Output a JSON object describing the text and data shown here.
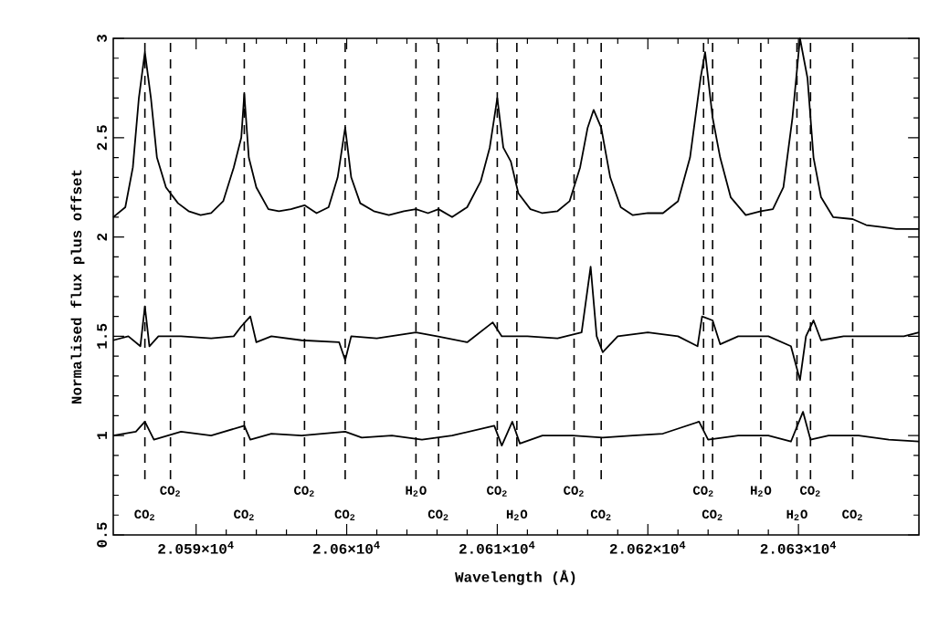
{
  "chart_data": {
    "type": "line",
    "xlabel": "Wavelength (Å)",
    "ylabel": "Normalised flux plus offset",
    "xlim": [
      20584.5,
      20638
    ],
    "ylim": [
      0.5,
      3
    ],
    "xticks": [
      {
        "value": 20590,
        "label": "2.059×10$^{4}$"
      },
      {
        "value": 20600,
        "label": "2.06×10$^{4}$"
      },
      {
        "value": 20610,
        "label": "2.061×10$^{4}$"
      },
      {
        "value": 20620,
        "label": "2.062×10$^{4}$"
      },
      {
        "value": 20630,
        "label": "2.063×10$^{4}$"
      }
    ],
    "yticks": [
      0.5,
      1,
      1.5,
      2,
      2.5,
      3
    ],
    "line_style": "solid",
    "marker": "none",
    "series": [
      {
        "color": "#000000",
        "x": [
          20584.5,
          20585.3,
          20585.8,
          20586.2,
          20586.6,
          20587.0,
          20587.4,
          20588.0,
          20588.8,
          20589.5,
          20590.3,
          20591.0,
          20591.8,
          20592.5,
          20593.0,
          20593.2,
          20593.5,
          20594.0,
          20594.8,
          20595.5,
          20596.3,
          20597.2,
          20598.0,
          20598.8,
          20599.4,
          20599.9,
          20600.3,
          20600.9,
          20601.8,
          20602.8,
          20603.8,
          20604.6,
          20605.4,
          20606.1,
          20607.0,
          20608.0,
          20608.9,
          20609.5,
          20610.0,
          20610.4,
          20610.9,
          20611.4,
          20612.2,
          20613.0,
          20614.0,
          20614.8,
          20615.5,
          20616.0,
          20616.4,
          20616.9,
          20617.5,
          20618.2,
          20619.0,
          20620.0,
          20621.0,
          20622.0,
          20622.8,
          20623.5,
          20623.8,
          20624.3,
          20624.8,
          20625.5,
          20626.5,
          20627.5,
          20628.3,
          20629.0,
          20629.6,
          20630.1,
          20630.6,
          20631.0,
          20631.5,
          20632.3,
          20633.6,
          20634.5,
          20635.5,
          20636.5,
          20638.0
        ],
        "values": [
          2.1,
          2.15,
          2.35,
          2.7,
          2.93,
          2.7,
          2.4,
          2.25,
          2.17,
          2.13,
          2.11,
          2.12,
          2.18,
          2.35,
          2.5,
          2.72,
          2.4,
          2.25,
          2.14,
          2.13,
          2.14,
          2.16,
          2.12,
          2.15,
          2.3,
          2.55,
          2.3,
          2.17,
          2.13,
          2.11,
          2.13,
          2.14,
          2.12,
          2.14,
          2.1,
          2.15,
          2.28,
          2.45,
          2.7,
          2.45,
          2.38,
          2.22,
          2.14,
          2.12,
          2.13,
          2.18,
          2.35,
          2.55,
          2.64,
          2.55,
          2.3,
          2.15,
          2.11,
          2.12,
          2.12,
          2.18,
          2.4,
          2.8,
          2.93,
          2.6,
          2.4,
          2.2,
          2.11,
          2.13,
          2.14,
          2.25,
          2.6,
          3.0,
          2.8,
          2.4,
          2.2,
          2.1,
          2.09,
          2.06,
          2.05,
          2.04,
          2.04
        ]
      },
      {
        "color": "#000000",
        "x": [
          20584.5,
          20585.5,
          20586.3,
          20586.6,
          20586.9,
          20587.5,
          20589,
          20591,
          20592.5,
          20593.0,
          20593.6,
          20594.0,
          20595,
          20597,
          20599.5,
          20599.9,
          20600.3,
          20602,
          20604.6,
          20606,
          20608,
          20609.7,
          20610.3,
          20612,
          20614,
          20615.6,
          20616.2,
          20616.6,
          20617.0,
          20618,
          20620,
          20622,
          20623.3,
          20623.6,
          20624.3,
          20624.8,
          20626,
          20628,
          20629.5,
          20630.1,
          20630.5,
          20631,
          20631.5,
          20633,
          20635,
          20637,
          20638
        ],
        "values": [
          1.48,
          1.5,
          1.45,
          1.65,
          1.45,
          1.5,
          1.5,
          1.49,
          1.5,
          1.55,
          1.6,
          1.47,
          1.5,
          1.48,
          1.47,
          1.38,
          1.5,
          1.49,
          1.52,
          1.5,
          1.47,
          1.57,
          1.5,
          1.5,
          1.49,
          1.52,
          1.85,
          1.5,
          1.42,
          1.5,
          1.52,
          1.5,
          1.45,
          1.6,
          1.58,
          1.46,
          1.5,
          1.5,
          1.45,
          1.28,
          1.5,
          1.58,
          1.48,
          1.5,
          1.5,
          1.5,
          1.52
        ]
      },
      {
        "color": "#000000",
        "x": [
          20584.5,
          20586,
          20586.6,
          20587.2,
          20589,
          20591,
          20593.2,
          20593.6,
          20595,
          20597,
          20599.9,
          20601,
          20603,
          20605,
          20607,
          20609.8,
          20610.3,
          20611,
          20611.5,
          20613,
          20615,
          20617,
          20619,
          20621,
          20623.4,
          20624,
          20626,
          20628,
          20629.5,
          20630.3,
          20630.8,
          20632,
          20634,
          20636,
          20638
        ],
        "values": [
          1.0,
          1.02,
          1.07,
          0.98,
          1.02,
          1.0,
          1.05,
          0.98,
          1.01,
          1.0,
          1.02,
          0.99,
          1.0,
          0.98,
          1.0,
          1.05,
          0.95,
          1.07,
          0.96,
          1.0,
          1.0,
          0.99,
          1.0,
          1.01,
          1.07,
          0.98,
          1.0,
          1.0,
          0.97,
          1.12,
          0.98,
          1.0,
          1.0,
          0.98,
          0.97
        ]
      }
    ],
    "ref_lines": [
      {
        "axis": "x",
        "value": 20586.6,
        "label": "CO$_{2}$",
        "line_style": "dashed"
      },
      {
        "axis": "x",
        "value": 20588.3,
        "label": "CO$_{2}$",
        "line_style": "dashed"
      },
      {
        "axis": "x",
        "value": 20593.2,
        "label": "CO$_{2}$",
        "line_style": "dashed"
      },
      {
        "axis": "x",
        "value": 20597.2,
        "label": "CO$_{2}$",
        "line_style": "dashed"
      },
      {
        "axis": "x",
        "value": 20599.9,
        "label": "CO$_{2}$",
        "line_style": "dashed"
      },
      {
        "axis": "x",
        "value": 20604.6,
        "label": "H$_{2}$O",
        "line_style": "dashed"
      },
      {
        "axis": "x",
        "value": 20606.1,
        "label": "CO$_{2}$",
        "line_style": "dashed"
      },
      {
        "axis": "x",
        "value": 20610.0,
        "label": "CO$_{2}$",
        "line_style": "dashed"
      },
      {
        "axis": "x",
        "value": 20611.3,
        "label": "H$_{2}$O",
        "line_style": "dashed"
      },
      {
        "axis": "x",
        "value": 20615.1,
        "label": "CO$_{2}$",
        "line_style": "dashed"
      },
      {
        "axis": "x",
        "value": 20616.9,
        "label": "CO$_{2}$",
        "line_style": "dashed"
      },
      {
        "axis": "x",
        "value": 20623.7,
        "label": "CO$_{2}$",
        "line_style": "dashed"
      },
      {
        "axis": "x",
        "value": 20624.3,
        "label": "CO$_{2}$",
        "line_style": "dashed"
      },
      {
        "axis": "x",
        "value": 20627.5,
        "label": "H$_{2}$O",
        "line_style": "dashed"
      },
      {
        "axis": "x",
        "value": 20629.9,
        "label": "H$_{2}$O",
        "line_style": "dashed"
      },
      {
        "axis": "x",
        "value": 20630.8,
        "label": "CO$_{2}$",
        "line_style": "dashed"
      },
      {
        "axis": "x",
        "value": 20633.6,
        "label": "CO$_{2}$",
        "line_style": "dashed"
      }
    ]
  }
}
